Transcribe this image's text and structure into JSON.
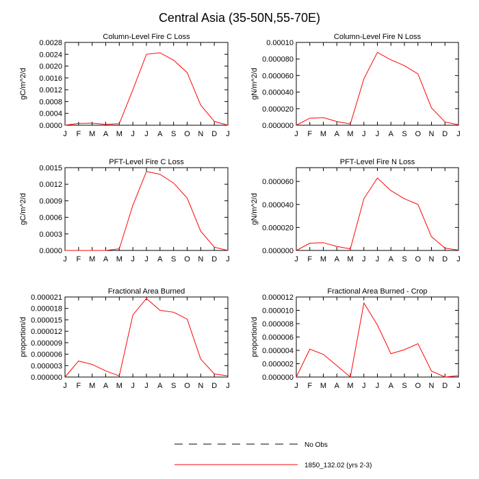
{
  "figure": {
    "title": "Central Asia (35-50N,55-70E)",
    "legend": [
      {
        "label": "No Obs",
        "style": "dashed",
        "color": "#000000"
      },
      {
        "label": "1850_132.02 (yrs 2-3)",
        "style": "solid",
        "color": "#ff0000"
      }
    ]
  },
  "chart_data": [
    {
      "type": "line",
      "title": "Column-Level Fire C Loss",
      "ylabel": "gC/m^2/d",
      "xlabel": "",
      "categories": [
        "J",
        "F",
        "M",
        "A",
        "M",
        "J",
        "J",
        "A",
        "S",
        "O",
        "N",
        "D",
        "J"
      ],
      "ylim": [
        0,
        0.0028
      ],
      "yticks": [
        "0.0000",
        "0.0004",
        "0.0008",
        "0.0012",
        "0.0016",
        "0.0020",
        "0.0024",
        "0.0028"
      ],
      "series": [
        {
          "name": "1850_132.02 (yrs 2-3)",
          "color": "#ff0000",
          "values": [
            0.0,
            6e-05,
            7e-05,
            3e-05,
            5e-05,
            0.0012,
            0.0024,
            0.00245,
            0.0022,
            0.00178,
            0.00068,
            0.00013,
            0.0
          ]
        }
      ]
    },
    {
      "type": "line",
      "title": "Column-Level Fire N Loss",
      "ylabel": "gN/m^2/d",
      "xlabel": "",
      "categories": [
        "J",
        "F",
        "M",
        "A",
        "M",
        "J",
        "J",
        "A",
        "S",
        "O",
        "N",
        "D",
        "J"
      ],
      "ylim": [
        0,
        0.0001
      ],
      "yticks": [
        "0.000000",
        "0.000020",
        "0.000040",
        "0.000060",
        "0.000080",
        "0.00010"
      ],
      "series": [
        {
          "name": "1850_132.02 (yrs 2-3)",
          "color": "#ff0000",
          "values": [
            0.0,
            8.5e-06,
            9.2e-06,
            4.5e-06,
            1.5e-06,
            5.6e-05,
            8.8e-05,
            7.9e-05,
            7.2e-05,
            6.2e-05,
            2.1e-05,
            4e-06,
            5e-07
          ]
        }
      ]
    },
    {
      "type": "line",
      "title": "PFT-Level Fire C Loss",
      "ylabel": "gC/m^2/d",
      "xlabel": "",
      "categories": [
        "J",
        "F",
        "M",
        "A",
        "M",
        "J",
        "J",
        "A",
        "S",
        "O",
        "N",
        "D",
        "J"
      ],
      "ylim": [
        0,
        0.0015
      ],
      "yticks": [
        "0.0000",
        "0.0003",
        "0.0006",
        "0.0009",
        "0.0012",
        "0.0015"
      ],
      "series": [
        {
          "name": "1850_132.02 (yrs 2-3)",
          "color": "#ff0000",
          "values": [
            0.0,
            0.0,
            0.0,
            0.0,
            3e-05,
            0.00082,
            0.00143,
            0.00138,
            0.00122,
            0.00095,
            0.00035,
            6e-05,
            0.0
          ]
        }
      ]
    },
    {
      "type": "line",
      "title": "PFT-Level Fire N Loss",
      "ylabel": "gN/m^2/d",
      "xlabel": "",
      "categories": [
        "J",
        "F",
        "M",
        "A",
        "M",
        "J",
        "J",
        "A",
        "S",
        "O",
        "N",
        "D",
        "J"
      ],
      "ylim": [
        0,
        7.2e-05
      ],
      "yticks": [
        "0.000000",
        "0.000020",
        "0.000040",
        "0.000060"
      ],
      "yticks_values": [
        0,
        2e-05,
        4e-05,
        6e-05
      ],
      "series": [
        {
          "name": "1850_132.02 (yrs 2-3)",
          "color": "#ff0000",
          "values": [
            0.0,
            6.3e-06,
            6.7e-06,
            3.5e-06,
            1.3e-06,
            4.5e-05,
            6.3e-05,
            5.2e-05,
            4.5e-05,
            4e-05,
            1.2e-05,
            2e-06,
            3e-07
          ]
        }
      ]
    },
    {
      "type": "line",
      "title": "Fractional Area Burned",
      "ylabel": "proportion/d",
      "xlabel": "",
      "categories": [
        "J",
        "F",
        "M",
        "A",
        "M",
        "J",
        "J",
        "A",
        "S",
        "O",
        "N",
        "D",
        "J"
      ],
      "ylim": [
        0,
        2.1e-05
      ],
      "yticks": [
        "0.000000",
        "0.000003",
        "0.000006",
        "0.000009",
        "0.000012",
        "0.000015",
        "0.000018",
        "0.000021"
      ],
      "series": [
        {
          "name": "1850_132.02 (yrs 2-3)",
          "color": "#ff0000",
          "values": [
            0.0,
            4.2e-06,
            3.3e-06,
            1.6e-06,
            3e-07,
            1.63e-05,
            2.06e-05,
            1.75e-05,
            1.7e-05,
            1.52e-05,
            4.7e-06,
            8e-07,
            3e-07
          ]
        }
      ]
    },
    {
      "type": "line",
      "title": "Fractional Area Burned - Crop",
      "ylabel": "proportion/d",
      "xlabel": "",
      "categories": [
        "J",
        "F",
        "M",
        "A",
        "M",
        "J",
        "J",
        "A",
        "S",
        "O",
        "N",
        "D",
        "J"
      ],
      "ylim": [
        0,
        1.2e-05
      ],
      "yticks": [
        "0.000000",
        "0.000002",
        "0.000004",
        "0.000006",
        "0.000008",
        "0.000010",
        "0.000012"
      ],
      "series": [
        {
          "name": "1850_132.02 (yrs 2-3)",
          "color": "#ff0000",
          "values": [
            0.0,
            4.2e-06,
            3.4e-06,
            1.7e-06,
            0.0,
            1.11e-05,
            7.8e-06,
            3.5e-06,
            4.1e-06,
            5e-06,
            9e-07,
            0.0,
            2e-07
          ]
        }
      ]
    }
  ]
}
